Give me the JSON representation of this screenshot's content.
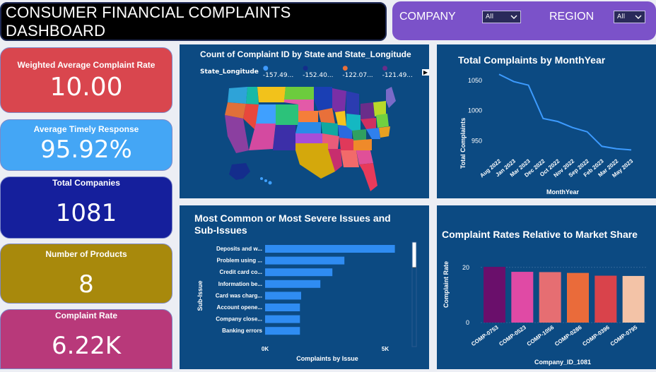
{
  "header": {
    "title": "CONSUMER FINANCIAL COMPLAINTS DASHBOARD",
    "company_label": "COMPANY",
    "company_value": "All",
    "region_label": "REGION",
    "region_value": "All"
  },
  "kpis": {
    "weighted_label": "Weighted Average Complaint Rate",
    "weighted_value": "10.00",
    "timely_label": "Average Timely Response",
    "timely_value": "95.92%",
    "companies_label": "Total Companies",
    "companies_value": "1081",
    "products_label": "Number of Products",
    "products_value": "8",
    "rate_label": "Complaint Rate",
    "rate_value": "6.22K"
  },
  "colors": {
    "kpi_weighted": "#d9464e",
    "kpi_timely": "#44a6f5",
    "kpi_companies": "#151f9c",
    "kpi_products": "#a8890c",
    "kpi_rate": "#b8397a",
    "panel": "#0c4a82",
    "line": "#3d9bff",
    "bar": "#2f8cf2"
  },
  "map": {
    "title": "Count of Complaint ID by State and State_Longitude",
    "legend_title": "State_Longitude",
    "legend": [
      {
        "label": "-157.49...",
        "color": "#3f9bff"
      },
      {
        "label": "-152.40...",
        "color": "#142d8c"
      },
      {
        "label": "-122.07...",
        "color": "#e8703a"
      },
      {
        "label": "-121.49...",
        "color": "#6a2d8a"
      }
    ]
  },
  "chart_data": [
    {
      "type": "line",
      "title": "Total Complaints by MonthYear",
      "xlabel": "MonthYear",
      "ylabel": "Total Complaints",
      "x": [
        "Aug 2022",
        "Jan 2023",
        "Mar 2023",
        "Dec 2022",
        "Oct 2022",
        "Nov 2022",
        "Sep 2022",
        "Feb 2023",
        "Mar 2022",
        "May 2023"
      ],
      "values": [
        1060,
        1048,
        1042,
        987,
        982,
        972,
        965,
        941,
        937,
        935
      ],
      "yticks": [
        950,
        1000,
        1050
      ],
      "ylim": [
        925,
        1065
      ]
    },
    {
      "type": "bar",
      "orientation": "horizontal",
      "title": "Most Common or Most Severe Issues and Sub-Issues",
      "xlabel": "Complaints by Issue",
      "ylabel": "Sub-Issue",
      "categories": [
        "Deposits and w...",
        "Problem using ...",
        "Credit card co...",
        "Information be...",
        "Card was charg...",
        "Account opene...",
        "Company close...",
        "Banking errors"
      ],
      "values": [
        5400,
        3300,
        2800,
        2300,
        1500,
        1450,
        1450,
        1450
      ],
      "xticks": [
        "0K",
        "5K"
      ],
      "xlim": [
        0,
        6000
      ]
    },
    {
      "type": "bar",
      "title": "Complaint Rates Relative to Market Share",
      "xlabel": "Company_ID_1081",
      "ylabel": "Complaint Rate",
      "categories": [
        "COMP-0753",
        "COMP-0523",
        "COMP-1056",
        "COMP-0286",
        "COMP-0396",
        "COMP-0795"
      ],
      "values": [
        20.2,
        18.4,
        18.3,
        18.0,
        17.0,
        16.9
      ],
      "colors": [
        "#6a0f6b",
        "#e04aa5",
        "#e66e72",
        "#ea6b3a",
        "#d9434b",
        "#f3c3a7"
      ],
      "yticks": [
        0,
        20
      ],
      "ylim": [
        0,
        22
      ]
    }
  ]
}
